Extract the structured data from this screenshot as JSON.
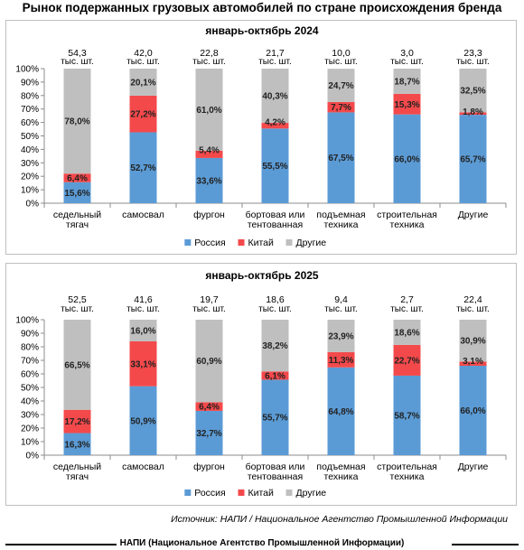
{
  "page": {
    "title": "Рынок подержанных грузовых автомобилей по стране происхождения бренда",
    "source": "Источник: НАПИ / Национальное Агентство Промышленной Информации",
    "footer": "НАПИ (Национальное Агентство Промышленной Информации)"
  },
  "chart_data": [
    {
      "type": "bar",
      "stacked": "percent",
      "title": "январь-октябрь 2024",
      "categories": [
        "седельный тягач",
        "самосвал",
        "фургон",
        "бортовая или тентованная",
        "подъемная техника",
        "строительная техника",
        "Другие"
      ],
      "totals": [
        "54,3",
        "42,0",
        "22,8",
        "21,7",
        "10,0",
        "3,0",
        "23,3"
      ],
      "totals_unit": "тыс. шт.",
      "series": [
        {
          "name": "Россия",
          "color": "#5b9bd5",
          "values": [
            15.6,
            52.7,
            33.6,
            55.5,
            67.5,
            66.0,
            65.7
          ],
          "labels": [
            "15,6%",
            "52,7%",
            "33,6%",
            "55,5%",
            "67,5%",
            "66,0%",
            "65,7%"
          ]
        },
        {
          "name": "Китай",
          "color": "#f4494b",
          "values": [
            6.4,
            27.2,
            5.4,
            4.2,
            7.7,
            15.3,
            1.8
          ],
          "labels": [
            "6,4%",
            "27,2%",
            "5,4%",
            "4,2%",
            "7,7%",
            "15,3%",
            "1,8%"
          ]
        },
        {
          "name": "Другие",
          "color": "#bfbfbf",
          "values": [
            78.0,
            20.1,
            61.0,
            40.3,
            24.7,
            18.7,
            32.5
          ],
          "labels": [
            "78,0%",
            "20,1%",
            "61,0%",
            "40,3%",
            "24,7%",
            "18,7%",
            "32,5%"
          ]
        }
      ],
      "yticks": [
        "0%",
        "10%",
        "20%",
        "30%",
        "40%",
        "50%",
        "60%",
        "70%",
        "80%",
        "90%",
        "100%"
      ],
      "ylim": [
        0,
        100
      ],
      "legend": "bottom"
    },
    {
      "type": "bar",
      "stacked": "percent",
      "title": "январь-октябрь 2025",
      "categories": [
        "седельный тягач",
        "самосвал",
        "фургон",
        "бортовая или тентованная",
        "подъемная техника",
        "строительная техника",
        "Другие"
      ],
      "totals": [
        "52,5",
        "41,6",
        "19,7",
        "18,6",
        "9,4",
        "2,7",
        "22,4"
      ],
      "totals_unit": "тыс. шт.",
      "series": [
        {
          "name": "Россия",
          "color": "#5b9bd5",
          "values": [
            16.3,
            50.9,
            32.7,
            55.7,
            64.8,
            58.7,
            66.0
          ],
          "labels": [
            "16,3%",
            "50,9%",
            "32,7%",
            "55,7%",
            "64,8%",
            "58,7%",
            "66,0%"
          ]
        },
        {
          "name": "Китай",
          "color": "#f4494b",
          "values": [
            17.2,
            33.1,
            6.4,
            6.1,
            11.3,
            22.7,
            3.1
          ],
          "labels": [
            "17,2%",
            "33,1%",
            "6,4%",
            "6,1%",
            "11,3%",
            "22,7%",
            "3,1%"
          ]
        },
        {
          "name": "Другие",
          "color": "#bfbfbf",
          "values": [
            66.5,
            16.0,
            60.9,
            38.2,
            23.9,
            18.6,
            30.9
          ],
          "labels": [
            "66,5%",
            "16,0%",
            "60,9%",
            "38,2%",
            "23,9%",
            "18,6%",
            "30,9%"
          ]
        }
      ],
      "yticks": [
        "0%",
        "10%",
        "20%",
        "30%",
        "40%",
        "50%",
        "60%",
        "70%",
        "80%",
        "90%",
        "100%"
      ],
      "ylim": [
        0,
        100
      ],
      "legend": "bottom"
    }
  ]
}
